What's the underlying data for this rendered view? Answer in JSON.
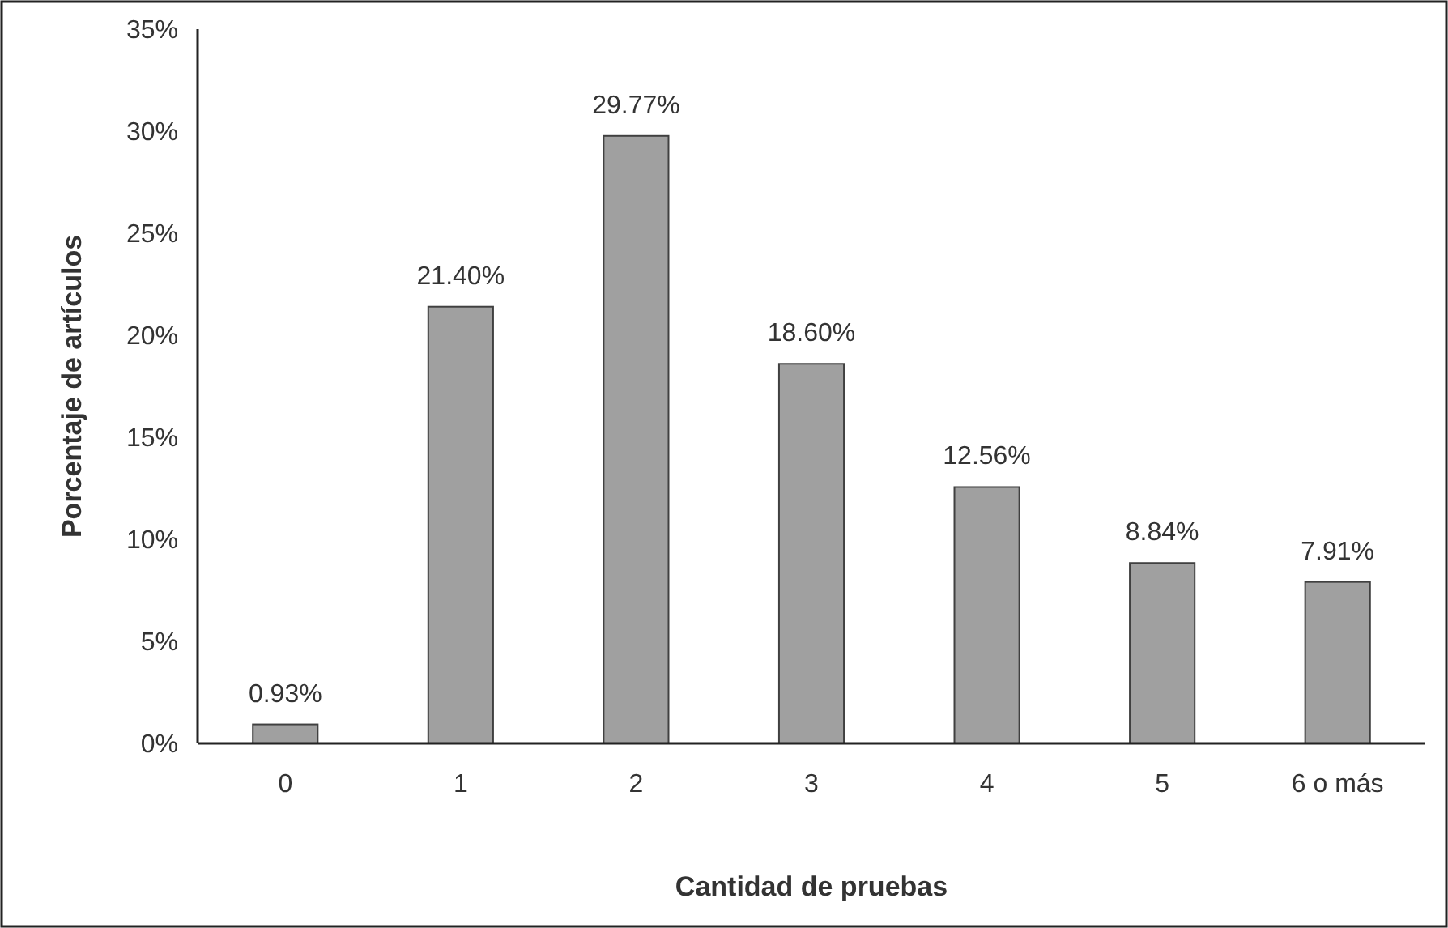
{
  "chart_data": {
    "type": "bar",
    "xlabel": "Cantidad de pruebas",
    "ylabel": "Porcentaje de artículos",
    "categories": [
      "0",
      "1",
      "2",
      "3",
      "4",
      "5",
      "6 o más"
    ],
    "values": [
      0.93,
      21.4,
      29.77,
      18.6,
      12.56,
      8.84,
      7.91
    ],
    "value_labels": [
      "0.93%",
      "21.40%",
      "29.77%",
      "18.60%",
      "12.56%",
      "8.84%",
      "7.91%"
    ],
    "color": "#a0a0a0",
    "ylim": [
      0,
      35
    ],
    "yticks": [
      {
        "value": 0,
        "label": "0%"
      },
      {
        "value": 5,
        "label": "5%"
      },
      {
        "value": 10,
        "label": "10%"
      },
      {
        "value": 15,
        "label": "15%"
      },
      {
        "value": 20,
        "label": "20%"
      },
      {
        "value": 25,
        "label": "25%"
      },
      {
        "value": 30,
        "label": "30%"
      },
      {
        "value": 35,
        "label": "35%"
      }
    ],
    "grid": false
  }
}
